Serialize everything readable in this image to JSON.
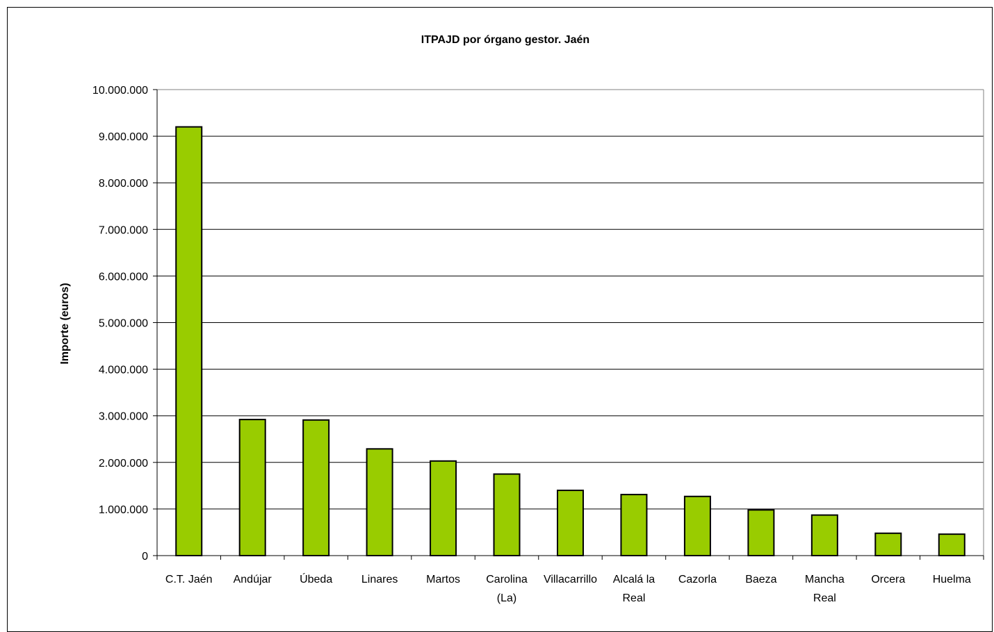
{
  "chart_data": {
    "type": "bar",
    "title": "ITPAJD por órgano gestor. Jaén",
    "xlabel": "",
    "ylabel": "Importe (euros)",
    "ylim": [
      0,
      10000000
    ],
    "yticks": [
      0,
      1000000,
      2000000,
      3000000,
      4000000,
      5000000,
      6000000,
      7000000,
      8000000,
      9000000,
      10000000
    ],
    "ytick_labels": [
      "0",
      "1.000.000",
      "2.000.000",
      "3.000.000",
      "4.000.000",
      "5.000.000",
      "6.000.000",
      "7.000.000",
      "8.000.000",
      "9.000.000",
      "10.000.000"
    ],
    "grid": true,
    "legend": "none",
    "bar_color": "#99CC00",
    "categories": [
      [
        "C.T. Jaén"
      ],
      [
        "Andújar"
      ],
      [
        "Úbeda"
      ],
      [
        "Linares"
      ],
      [
        "Martos"
      ],
      [
        "Carolina",
        "(La)"
      ],
      [
        "Villacarrillo"
      ],
      [
        "Alcalá la",
        "Real"
      ],
      [
        "Cazorla"
      ],
      [
        "Baeza"
      ],
      [
        "Mancha",
        "Real"
      ],
      [
        "Orcera"
      ],
      [
        "Huelma"
      ]
    ],
    "values": [
      9200000,
      2920000,
      2910000,
      2290000,
      2030000,
      1750000,
      1400000,
      1310000,
      1270000,
      980000,
      870000,
      480000,
      460000
    ]
  }
}
